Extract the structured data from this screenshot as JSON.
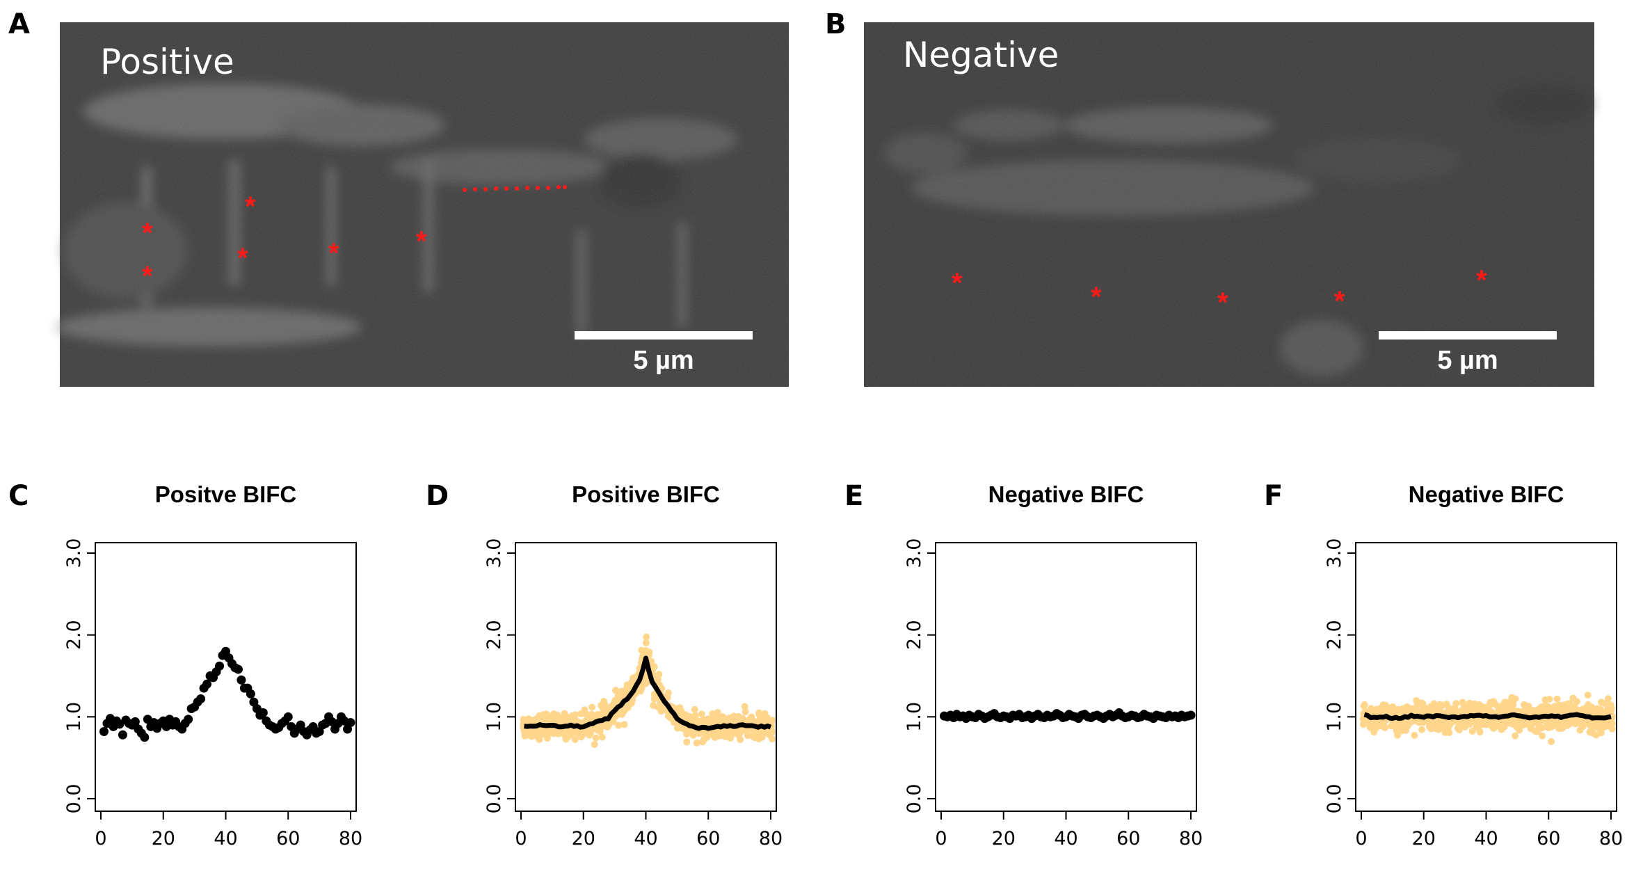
{
  "panels": {
    "A": {
      "letter": "A",
      "label": "Positive",
      "scale_bar_label": "5 µm",
      "marker_symbol": "*",
      "marker_color": "#ff1a1a"
    },
    "B": {
      "letter": "B",
      "label": "Negative",
      "scale_bar_label": "5 µm",
      "marker_symbol": "*",
      "marker_color": "#ff1a1a"
    }
  },
  "colors": {
    "micrograph_bg": "#3a3a3a",
    "point": "#000000",
    "replicate": "#ffa500",
    "mean_line": "#000000"
  },
  "chart_data": [
    {
      "letter": "C",
      "type": "scatter",
      "title": "Positve BIFC",
      "xlim": [
        0,
        80
      ],
      "ylim": [
        0,
        3
      ],
      "xticks": [
        0,
        20,
        40,
        60,
        80
      ],
      "yticks": [
        0.0,
        1.0,
        2.0,
        3.0
      ],
      "xtick_labels": [
        "0",
        "20",
        "40",
        "60",
        "80"
      ],
      "ytick_labels": [
        "0.0",
        "1.0",
        "2.0",
        "3.0"
      ],
      "x": [
        1,
        2,
        3,
        4,
        5,
        6,
        7,
        8,
        9,
        10,
        11,
        12,
        13,
        14,
        15,
        16,
        17,
        18,
        19,
        20,
        21,
        22,
        23,
        24,
        25,
        26,
        27,
        28,
        29,
        30,
        31,
        32,
        33,
        34,
        35,
        36,
        37,
        38,
        39,
        40,
        41,
        42,
        43,
        44,
        45,
        46,
        47,
        48,
        49,
        50,
        51,
        52,
        53,
        54,
        55,
        56,
        57,
        58,
        59,
        60,
        61,
        62,
        63,
        64,
        65,
        66,
        67,
        68,
        69,
        70,
        71,
        72,
        73,
        74,
        75,
        76,
        77,
        78,
        79,
        80
      ],
      "y": [
        0.82,
        0.92,
        0.98,
        0.88,
        0.95,
        0.91,
        0.78,
        0.96,
        0.92,
        0.9,
        0.94,
        0.85,
        0.8,
        0.75,
        0.97,
        0.88,
        0.93,
        0.86,
        0.92,
        0.95,
        0.88,
        0.97,
        0.9,
        0.94,
        0.88,
        0.85,
        0.92,
        0.97,
        1.1,
        1.12,
        1.18,
        1.22,
        1.35,
        1.4,
        1.5,
        1.48,
        1.55,
        1.62,
        1.75,
        1.8,
        1.72,
        1.65,
        1.6,
        1.58,
        1.45,
        1.35,
        1.35,
        1.28,
        1.18,
        1.1,
        1.02,
        1.05,
        0.95,
        0.9,
        0.88,
        0.85,
        0.87,
        0.92,
        0.95,
        1.0,
        0.88,
        0.8,
        0.85,
        0.9,
        0.82,
        0.78,
        0.84,
        0.88,
        0.8,
        0.82,
        0.9,
        0.92,
        1.0,
        0.94,
        0.85,
        0.92,
        1.0,
        0.95,
        0.85,
        0.93
      ]
    },
    {
      "letter": "D",
      "type": "line",
      "title": "Positive BIFC",
      "xlim": [
        0,
        80
      ],
      "ylim": [
        0,
        3
      ],
      "xticks": [
        0,
        20,
        40,
        60,
        80
      ],
      "yticks": [
        0.0,
        1.0,
        2.0,
        3.0
      ],
      "xtick_labels": [
        "0",
        "20",
        "40",
        "60",
        "80"
      ],
      "ytick_labels": [
        "0.0",
        "1.0",
        "2.0",
        "3.0"
      ],
      "x": [
        1,
        4,
        8,
        12,
        16,
        20,
        24,
        28,
        30,
        32,
        34,
        36,
        38,
        39,
        40,
        41,
        42,
        44,
        46,
        48,
        50,
        52,
        56,
        60,
        64,
        68,
        72,
        76,
        80
      ],
      "y": [
        0.88,
        0.89,
        0.9,
        0.88,
        0.89,
        0.88,
        0.93,
        0.98,
        1.08,
        1.15,
        1.22,
        1.32,
        1.45,
        1.56,
        1.72,
        1.55,
        1.42,
        1.3,
        1.18,
        1.08,
        0.98,
        0.92,
        0.87,
        0.86,
        0.88,
        0.89,
        0.9,
        0.88,
        0.88
      ],
      "spread": [
        0.13,
        0.13,
        0.13,
        0.13,
        0.13,
        0.13,
        0.14,
        0.15,
        0.16,
        0.17,
        0.18,
        0.19,
        0.2,
        0.21,
        0.24,
        0.21,
        0.2,
        0.18,
        0.16,
        0.15,
        0.14,
        0.14,
        0.13,
        0.13,
        0.13,
        0.13,
        0.13,
        0.13,
        0.13
      ]
    },
    {
      "letter": "E",
      "type": "scatter",
      "title": "Negative BIFC",
      "xlim": [
        0,
        80
      ],
      "ylim": [
        0,
        3
      ],
      "xticks": [
        0,
        20,
        40,
        60,
        80
      ],
      "yticks": [
        0.0,
        1.0,
        2.0,
        3.0
      ],
      "xtick_labels": [
        "0",
        "20",
        "40",
        "60",
        "80"
      ],
      "ytick_labels": [
        "0.0",
        "1.0",
        "2.0",
        "3.0"
      ],
      "x": [
        1,
        2,
        3,
        4,
        5,
        6,
        7,
        8,
        9,
        10,
        11,
        12,
        13,
        14,
        15,
        16,
        17,
        18,
        19,
        20,
        21,
        22,
        23,
        24,
        25,
        26,
        27,
        28,
        29,
        30,
        31,
        32,
        33,
        34,
        35,
        36,
        37,
        38,
        39,
        40,
        41,
        42,
        43,
        44,
        45,
        46,
        47,
        48,
        49,
        50,
        51,
        52,
        53,
        54,
        55,
        56,
        57,
        58,
        59,
        60,
        61,
        62,
        63,
        64,
        65,
        66,
        67,
        68,
        69,
        70,
        71,
        72,
        73,
        74,
        75,
        76,
        77,
        78,
        79,
        80
      ],
      "y": [
        1.01,
        1.0,
        1.02,
        0.99,
        1.03,
        1.0,
        1.01,
        0.98,
        1.02,
        1.0,
        0.99,
        1.03,
        1.01,
        0.98,
        1.0,
        1.02,
        1.04,
        1.0,
        0.99,
        1.01,
        1.0,
        0.98,
        1.02,
        1.01,
        1.03,
        0.99,
        1.0,
        1.02,
        0.98,
        1.01,
        1.03,
        1.0,
        0.99,
        1.02,
        1.0,
        1.01,
        1.04,
        1.02,
        0.99,
        1.0,
        1.03,
        1.01,
        1.0,
        0.98,
        1.02,
        1.03,
        1.0,
        0.99,
        1.01,
        1.02,
        1.0,
        0.98,
        1.01,
        1.03,
        1.0,
        1.02,
        1.05,
        1.01,
        0.99,
        1.0,
        1.02,
        1.01,
        0.99,
        1.0,
        1.03,
        1.01,
        1.0,
        0.98,
        1.02,
        1.01,
        1.0,
        0.99,
        1.02,
        1.0,
        1.01,
        0.99,
        1.02,
        1.0,
        1.01,
        1.02
      ]
    },
    {
      "letter": "F",
      "type": "line",
      "title": "Negative BIFC",
      "xlim": [
        0,
        80
      ],
      "ylim": [
        0,
        3
      ],
      "xticks": [
        0,
        20,
        40,
        60,
        80
      ],
      "yticks": [
        0.0,
        1.0,
        2.0,
        3.0
      ],
      "xtick_labels": [
        "0",
        "20",
        "40",
        "60",
        "80"
      ],
      "ytick_labels": [
        "0.0",
        "1.0",
        "2.0",
        "3.0"
      ],
      "x": [
        1,
        4,
        8,
        12,
        16,
        20,
        24,
        28,
        32,
        36,
        40,
        44,
        48,
        52,
        56,
        60,
        64,
        68,
        72,
        76,
        80
      ],
      "y": [
        1.02,
        0.99,
        1.0,
        0.98,
        1.01,
        1.0,
        1.01,
        0.99,
        1.0,
        1.02,
        1.01,
        1.0,
        1.02,
        1.0,
        0.99,
        1.01,
        1.0,
        1.03,
        1.0,
        0.99,
        1.0
      ],
      "spread": [
        0.15,
        0.15,
        0.15,
        0.15,
        0.15,
        0.15,
        0.15,
        0.15,
        0.15,
        0.15,
        0.15,
        0.15,
        0.15,
        0.15,
        0.15,
        0.15,
        0.15,
        0.15,
        0.15,
        0.15,
        0.15
      ]
    }
  ]
}
